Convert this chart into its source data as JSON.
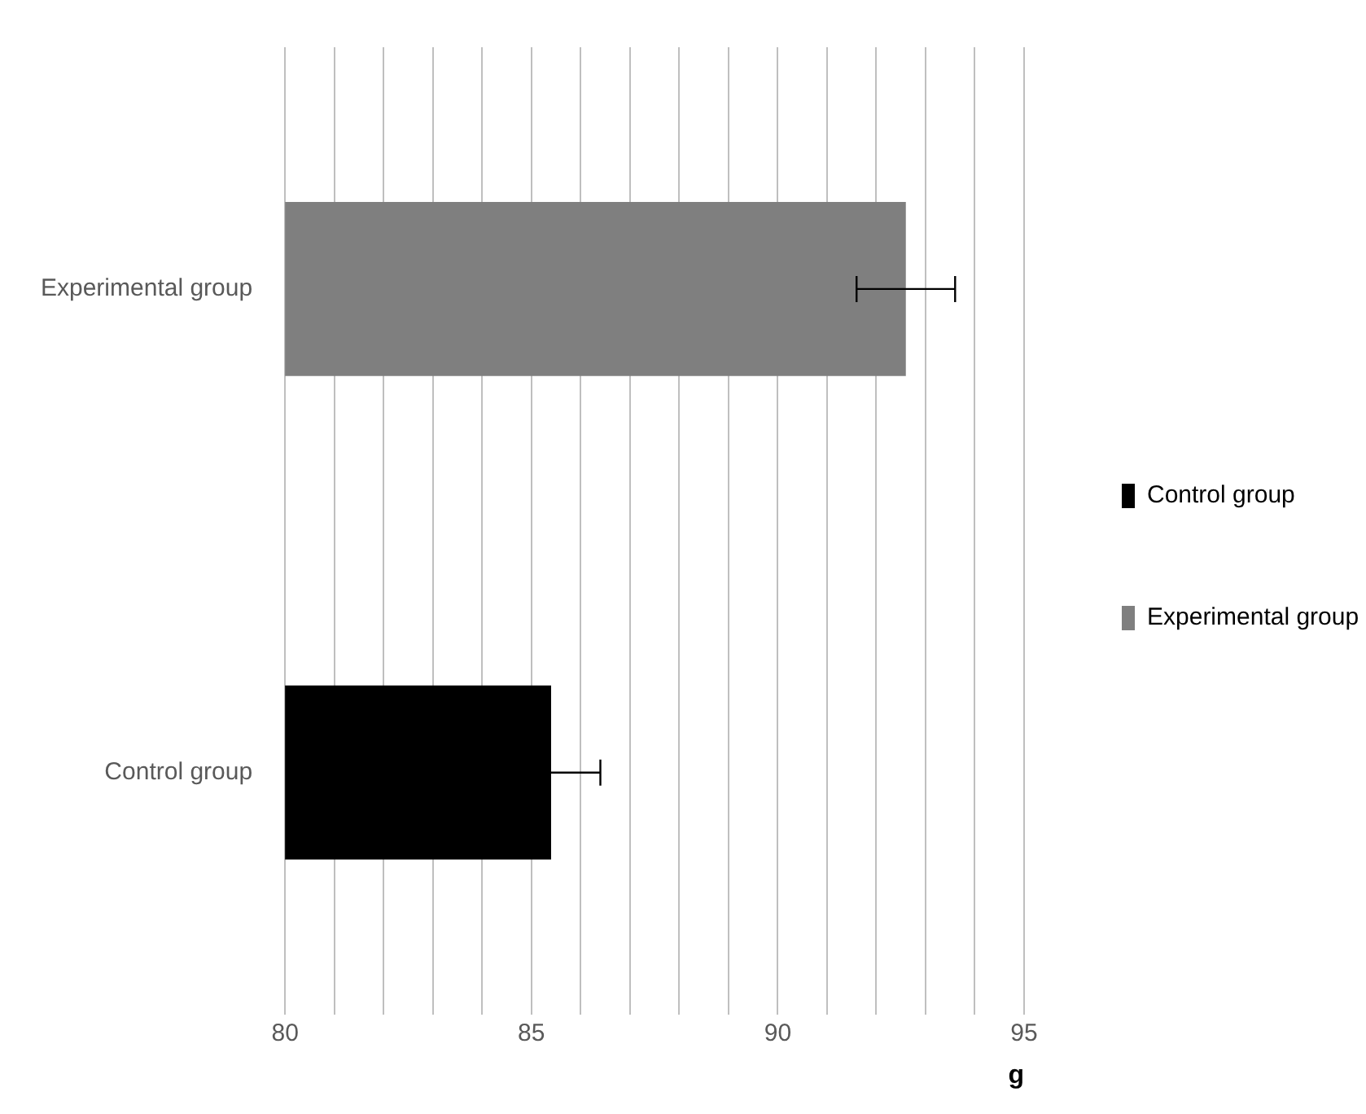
{
  "chart_data": {
    "type": "bar",
    "orientation": "horizontal",
    "xlabel": "g",
    "categories": [
      "Experimental group",
      "Control group"
    ],
    "series": [
      {
        "name": "Control group",
        "color": "#000000",
        "values": [
          null,
          85.4
        ],
        "errors": [
          null,
          1.0
        ]
      },
      {
        "name": "Experimental group",
        "color": "#7f7f7f",
        "values": [
          92.6,
          null
        ],
        "errors": [
          1.0,
          null
        ]
      }
    ],
    "xlim": [
      80,
      95
    ],
    "xticks": [
      80,
      {
        "value": 81,
        "label": null
      },
      {
        "value": 82,
        "label": null
      },
      {
        "value": 83,
        "label": null
      },
      {
        "value": 84,
        "label": null
      },
      85,
      {
        "value": 86,
        "label": null
      },
      {
        "value": 87,
        "label": null
      },
      {
        "value": 88,
        "label": null
      },
      {
        "value": 89,
        "label": null
      },
      90,
      {
        "value": 91,
        "label": null
      },
      {
        "value": 92,
        "label": null
      },
      {
        "value": 93,
        "label": null
      },
      {
        "value": 94,
        "label": null
      },
      95
    ],
    "grid": "x",
    "legend": "right"
  }
}
